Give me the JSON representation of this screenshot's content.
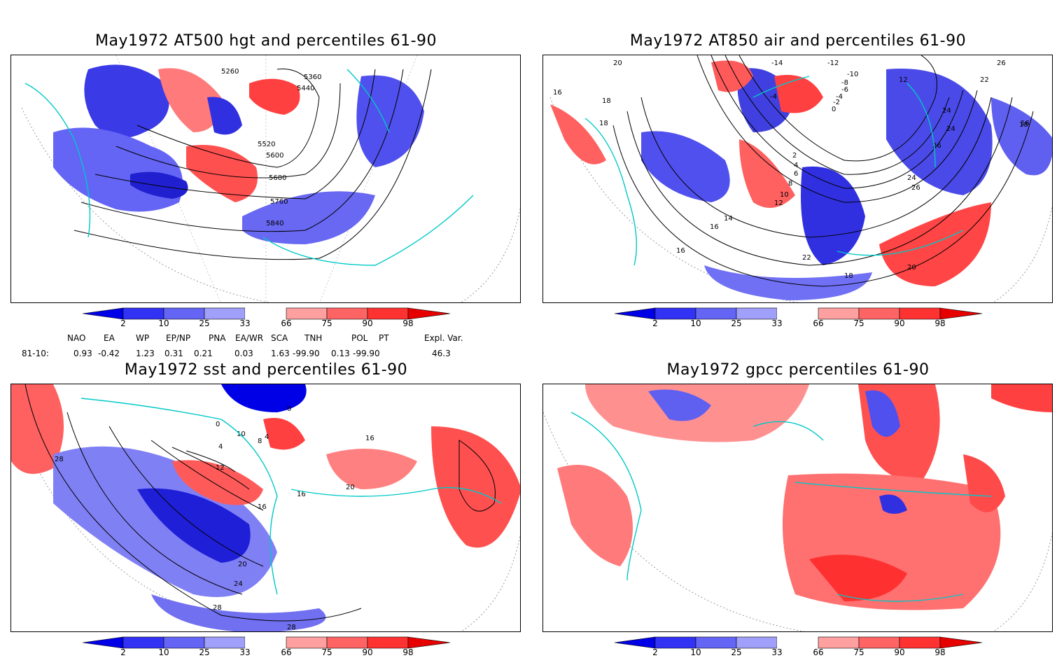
{
  "panels": [
    {
      "id": "p1",
      "title": "May1972 AT500 hgt and percentiles 61-90",
      "contour_labels": [
        "5260",
        "5360",
        "5440",
        "5520",
        "5600",
        "5680",
        "5760",
        "5840"
      ]
    },
    {
      "id": "p2",
      "title": "May1972 AT850 air and percentiles 61-90",
      "contour_labels": [
        "20",
        "16",
        "18",
        "18",
        "-14",
        "-12",
        "-10",
        "-8",
        "-6",
        "-4",
        "-4",
        "-2",
        "0",
        "2",
        "4",
        "6",
        "8",
        "10",
        "12",
        "14",
        "16",
        "16",
        "22",
        "18",
        "20",
        "24",
        "24",
        "26",
        "24",
        "26",
        "12",
        "22",
        "26",
        "18",
        "16"
      ]
    },
    {
      "id": "p3",
      "title": "May1972 sst and percentiles 61-90",
      "contour_labels": [
        "28",
        "0",
        "4",
        "8",
        "0",
        "4",
        "12",
        "16",
        "16",
        "16",
        "20",
        "20",
        "24",
        "28",
        "28",
        "10"
      ]
    },
    {
      "id": "p4",
      "title": "May1972 gpcc percentiles 61-90",
      "contour_labels": []
    }
  ],
  "colorbar": {
    "ticks": [
      "2",
      "10",
      "25",
      "33",
      "66",
      "75",
      "90",
      "98"
    ],
    "colors": [
      "#0000e6",
      "#3232f5",
      "#6464f5",
      "#a0a0fa",
      "#ffffff",
      "#ffa0a0",
      "#ff6464",
      "#ff3232",
      "#e60000"
    ]
  },
  "indices": {
    "headers": [
      "NAO",
      "EA",
      "WP",
      "EP/NP",
      "PNA",
      "EA/WR",
      "SCA",
      "TNH",
      "POL",
      "PT",
      "Expl. Var."
    ],
    "row_label": "81-10:",
    "values": [
      "0.93",
      "-0.42",
      "1.23",
      "0.31",
      "0.21",
      "0.03",
      "1.63",
      "-99.90",
      "0.13",
      "-99.90",
      "46.3"
    ]
  },
  "colors": {
    "coast": "#00c8c8",
    "blue": "#4a4af0",
    "lightblue": "#a0a0fa",
    "red": "#ff5050",
    "lightred": "#ffa0a0"
  }
}
